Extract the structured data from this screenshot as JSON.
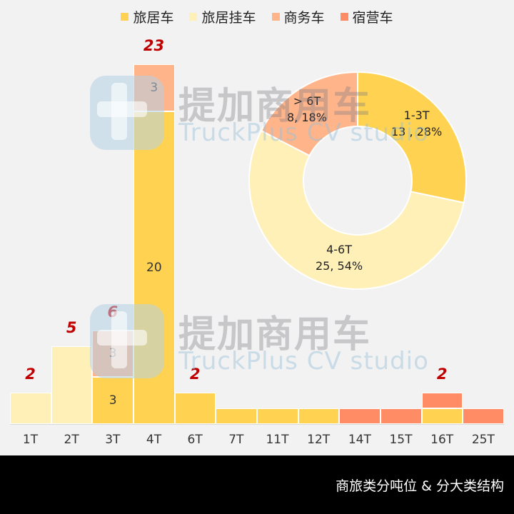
{
  "legend": [
    {
      "label": "旅居车",
      "color": "#ffd351"
    },
    {
      "label": "旅居挂车",
      "color": "#fff0b8"
    },
    {
      "label": "商务车",
      "color": "#ffb48a"
    },
    {
      "label": "宿营车",
      "color": "#ff8c64"
    }
  ],
  "watermark": {
    "cn": "提加商用车",
    "en": "TruckPlus CV studio"
  },
  "footer": {
    "title": "商旅类分吨位 & 分大类结构"
  },
  "chart_data": [
    {
      "type": "bar",
      "stacked": true,
      "title": "",
      "xlabel": "",
      "ylabel": "",
      "categories": [
        "1T",
        "2T",
        "3T",
        "4T",
        "6T",
        "7T",
        "11T",
        "12T",
        "14T",
        "15T",
        "16T",
        "25T"
      ],
      "series": [
        {
          "name": "旅居车",
          "color": "#ffd351",
          "values": [
            0,
            0,
            3,
            20,
            2,
            1,
            1,
            1,
            0,
            0,
            1,
            0
          ]
        },
        {
          "name": "旅居挂车",
          "color": "#fff0b8",
          "values": [
            2,
            5,
            0,
            0,
            0,
            0,
            0,
            0,
            0,
            0,
            0,
            0
          ]
        },
        {
          "name": "商务车",
          "color": "#ffb48a",
          "values": [
            0,
            0,
            3,
            3,
            0,
            0,
            0,
            0,
            0,
            0,
            0,
            0
          ]
        },
        {
          "name": "宿营车",
          "color": "#ff8c64",
          "values": [
            0,
            0,
            0,
            0,
            0,
            0,
            0,
            0,
            1,
            1,
            1,
            1
          ]
        }
      ],
      "segment_labels": {
        "3T": [
          "3",
          "3"
        ],
        "4T": [
          "20",
          "3"
        ]
      },
      "total_labels": {
        "1T": "2",
        "2T": "5",
        "3T": "6",
        "4T": "23",
        "6T": "2",
        "16T": "2"
      },
      "grid": false,
      "legend_position": "top"
    },
    {
      "type": "pie",
      "donut": true,
      "slices": [
        {
          "label": "1-3T",
          "value": 13,
          "percent": "28%",
          "text": "13 , 28%",
          "color": "#ffd351"
        },
        {
          "label": "4-6T",
          "value": 25,
          "percent": "54%",
          "text": "25, 54%",
          "color": "#fff0b8"
        },
        {
          "label": "> 6T",
          "value": 8,
          "percent": "18%",
          "text": "8, 18%",
          "color": "#ffb48a"
        }
      ]
    }
  ]
}
